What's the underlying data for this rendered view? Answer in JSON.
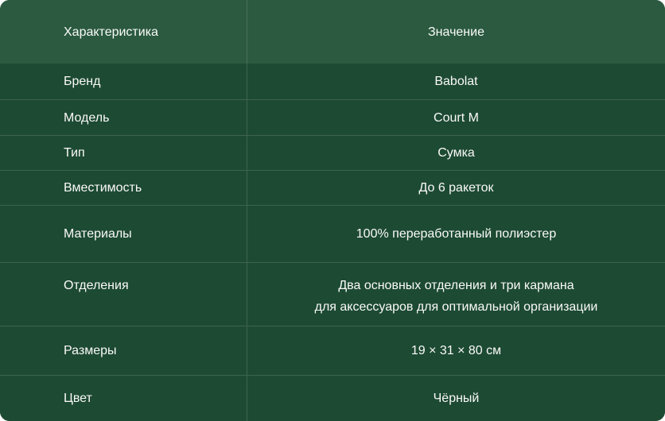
{
  "theme": {
    "header_bg": "#2B5A40",
    "row_bg": "#1D4A33",
    "text": "#FAFAF8"
  },
  "table": {
    "columns": {
      "characteristic": "Характеристика",
      "value": "Значение"
    },
    "rows": [
      {
        "label": "Бренд",
        "value": "Babolat"
      },
      {
        "label": "Модель",
        "value": "Court M"
      },
      {
        "label": "Тип",
        "value": "Сумка"
      },
      {
        "label": "Вместимость",
        "value": "До 6 ракеток"
      },
      {
        "label": "Материалы",
        "value": "100% переработанный полиэстер"
      },
      {
        "label": "Отделения",
        "value": "Два основных отделения и три кармана\nдля аксессуаров для оптимальной организации"
      },
      {
        "label": "Размеры",
        "value": "19 × 31 × 80 см"
      },
      {
        "label": "Цвет",
        "value": "Чёрный"
      }
    ]
  }
}
